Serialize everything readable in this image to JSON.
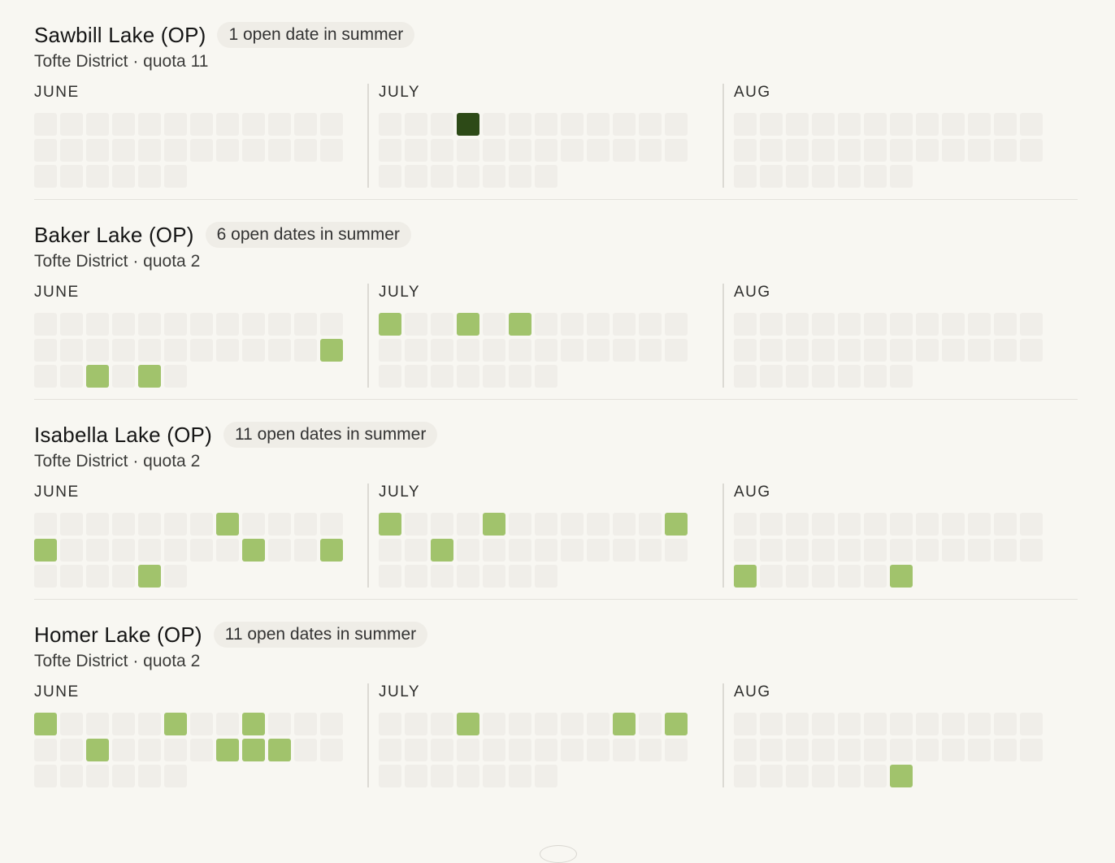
{
  "months": [
    {
      "label": "JUNE",
      "days": 30
    },
    {
      "label": "JULY",
      "days": 31
    },
    {
      "label": "AUG",
      "days": 31
    }
  ],
  "lakes": [
    {
      "name": "Sawbill Lake (OP)",
      "badge": "1 open date in summer",
      "district": "Tofte District · quota 11",
      "open": [
        [],
        [],
        []
      ],
      "selected": [
        [],
        [
          4
        ],
        []
      ]
    },
    {
      "name": "Baker Lake (OP)",
      "badge": "6 open dates in summer",
      "district": "Tofte District · quota 2",
      "open": [
        [
          24,
          27,
          29
        ],
        [
          1,
          4,
          6
        ],
        []
      ],
      "selected": [
        [],
        [],
        []
      ]
    },
    {
      "name": "Isabella Lake (OP)",
      "badge": "11 open dates in summer",
      "district": "Tofte District · quota 2",
      "open": [
        [
          8,
          13,
          21,
          24,
          29
        ],
        [
          1,
          5,
          12,
          15
        ],
        [
          25,
          31
        ]
      ],
      "selected": [
        [],
        [],
        []
      ]
    },
    {
      "name": "Homer Lake (OP)",
      "badge": "11 open dates in summer",
      "district": "Tofte District · quota 2",
      "open": [
        [
          1,
          6,
          9,
          15,
          20,
          21,
          22
        ],
        [
          4,
          10,
          12
        ],
        [
          31
        ]
      ],
      "selected": [
        [],
        [],
        []
      ]
    }
  ],
  "colors": {
    "empty": "#f0eee9",
    "open": "#a1c36c",
    "selected": "#2d4a17",
    "badge_bg": "#efede7"
  }
}
